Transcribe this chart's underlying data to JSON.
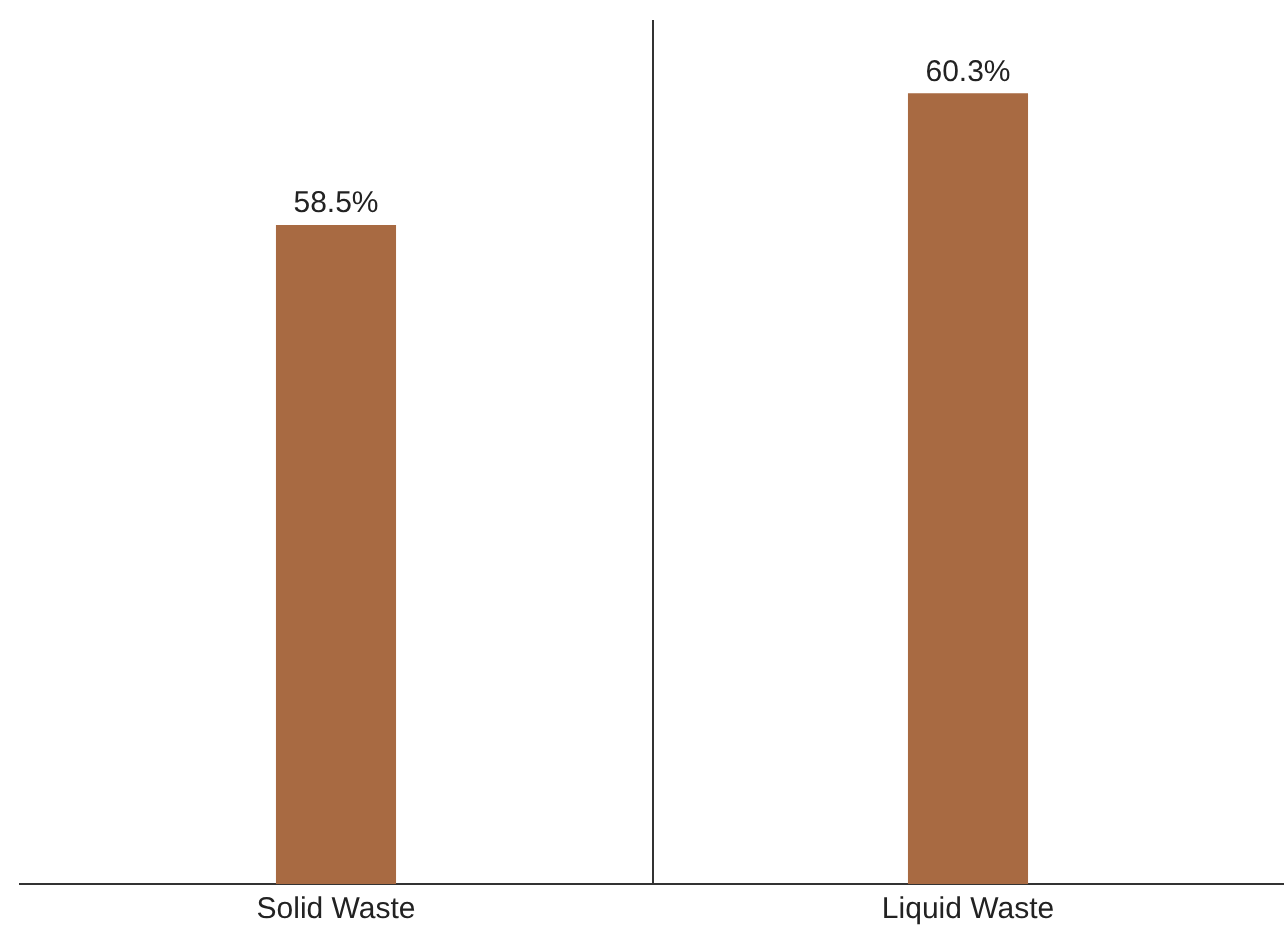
{
  "chart_data": {
    "type": "bar",
    "categories": [
      "Solid Waste",
      "Liquid Waste"
    ],
    "values": [
      58.5,
      60.3
    ],
    "color": "#a86a42",
    "value_labels": [
      "58.5%",
      "60.3%"
    ],
    "ylim": [
      49.5,
      61.3
    ],
    "grid": false,
    "legend": false
  }
}
